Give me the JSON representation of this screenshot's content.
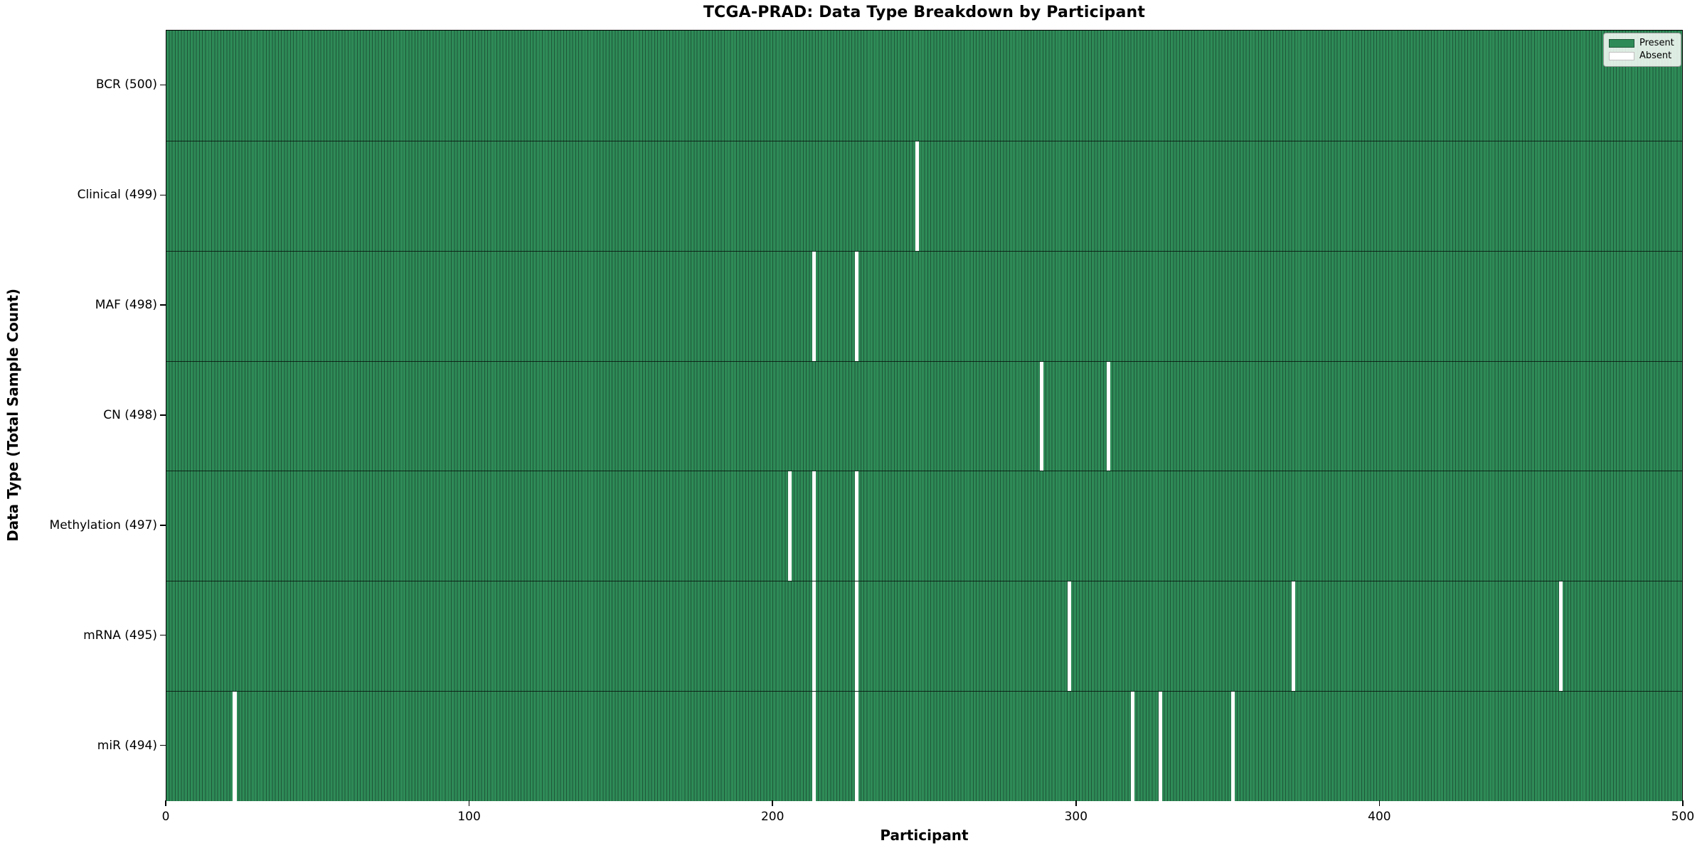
{
  "chart_data": {
    "type": "heatmap",
    "title": "TCGA-PRAD: Data Type Breakdown by Participant",
    "xlabel": "Participant",
    "ylabel": "Data Type (Total Sample Count)",
    "x_range": [
      0,
      500
    ],
    "x_ticks": [
      0,
      100,
      200,
      300,
      400,
      500
    ],
    "n_participants": 500,
    "grid": false,
    "legend_position": "upper right",
    "legend": [
      {
        "label": "Present",
        "color": "#2e8b57",
        "edge": "#1e5638"
      },
      {
        "label": "Absent",
        "color": "#ffffff",
        "edge": "#c0c0c0"
      }
    ],
    "colors": {
      "present_fill": "#2e8b57",
      "present_edge": "#1e5638",
      "absent_fill": "#ffffff",
      "row_divider": "rgba(0,0,0,0.7)"
    },
    "rows": [
      {
        "name": "BCR",
        "label": "BCR (500)",
        "total": 500,
        "absent_participants": []
      },
      {
        "name": "Clinical",
        "label": "Clinical (499)",
        "total": 499,
        "absent_participants": [
          247
        ]
      },
      {
        "name": "MAF",
        "label": "MAF (498)",
        "total": 498,
        "absent_participants": [
          213,
          227
        ]
      },
      {
        "name": "CN",
        "label": "CN (498)",
        "total": 498,
        "absent_participants": [
          288,
          310
        ]
      },
      {
        "name": "Methylation",
        "label": "Methylation (497)",
        "total": 497,
        "absent_participants": [
          205,
          213,
          227
        ]
      },
      {
        "name": "mRNA",
        "label": "mRNA (495)",
        "total": 495,
        "absent_participants": [
          213,
          227,
          297,
          371,
          459
        ]
      },
      {
        "name": "miR",
        "label": "miR (494)",
        "total": 494,
        "absent_participants": [
          22,
          213,
          227,
          318,
          327,
          351
        ]
      }
    ]
  }
}
